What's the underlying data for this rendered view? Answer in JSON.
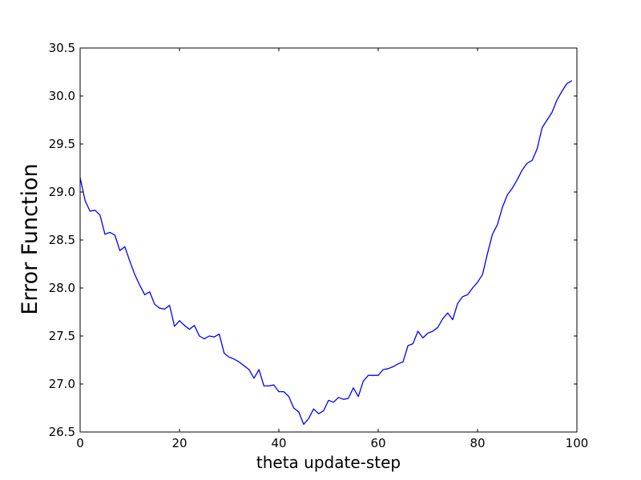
{
  "chart_data": {
    "type": "line",
    "title": "",
    "xlabel": "theta update-step",
    "ylabel": "Error Function",
    "xlim": [
      0,
      100
    ],
    "ylim": [
      26.5,
      30.5
    ],
    "xticks": [
      "0",
      "20",
      "40",
      "60",
      "80",
      "100"
    ],
    "yticks": [
      "26.5",
      "27.0",
      "27.5",
      "28.0",
      "28.5",
      "29.0",
      "29.5",
      "30.0",
      "30.5"
    ],
    "grid": false,
    "line_color": "#0000ff",
    "series": [
      {
        "x": [
          0,
          1,
          2,
          3,
          4,
          5,
          6,
          7,
          8,
          9,
          10,
          11,
          12,
          13,
          14,
          15,
          16,
          17,
          18,
          19,
          20,
          21,
          22,
          23,
          24,
          25,
          26,
          27,
          28,
          29,
          30,
          31,
          32,
          33,
          34,
          35,
          36,
          37,
          38,
          39,
          40,
          41,
          42,
          43,
          44,
          45,
          46,
          47,
          48,
          49,
          50,
          51,
          52,
          53,
          54,
          55,
          56,
          57,
          58,
          59,
          60,
          61,
          62,
          63,
          64,
          65,
          66,
          67,
          68,
          69,
          70,
          71,
          72,
          73,
          74,
          75,
          76,
          77,
          78,
          79,
          80,
          81,
          82,
          83,
          84,
          85,
          86,
          87,
          88,
          89,
          90,
          91,
          92,
          93,
          94,
          95,
          96,
          97,
          98,
          99
        ],
        "y": [
          29.15,
          28.91,
          28.8,
          28.81,
          28.76,
          28.56,
          28.58,
          28.55,
          28.39,
          28.43,
          28.28,
          28.14,
          28.03,
          27.93,
          27.96,
          27.83,
          27.79,
          27.78,
          27.82,
          27.6,
          27.66,
          27.61,
          27.57,
          27.61,
          27.5,
          27.47,
          27.5,
          27.49,
          27.52,
          27.32,
          27.28,
          27.26,
          27.23,
          27.19,
          27.15,
          27.06,
          27.15,
          26.98,
          26.98,
          26.99,
          26.92,
          26.92,
          26.87,
          26.75,
          26.71,
          26.58,
          26.64,
          26.74,
          26.69,
          26.72,
          26.83,
          26.81,
          26.86,
          26.84,
          26.85,
          26.96,
          26.87,
          27.03,
          27.09,
          27.09,
          27.09,
          27.15,
          27.16,
          27.18,
          27.21,
          27.23,
          27.4,
          27.42,
          27.55,
          27.48,
          27.53,
          27.55,
          27.59,
          27.68,
          27.74,
          27.67,
          27.84,
          27.91,
          27.93,
          28.0,
          28.06,
          28.14,
          28.36,
          28.56,
          28.66,
          28.84,
          28.97,
          29.04,
          29.13,
          29.23,
          29.3,
          29.33,
          29.45,
          29.67,
          29.75,
          29.83,
          29.96,
          30.05,
          30.13,
          30.16
        ]
      }
    ]
  }
}
